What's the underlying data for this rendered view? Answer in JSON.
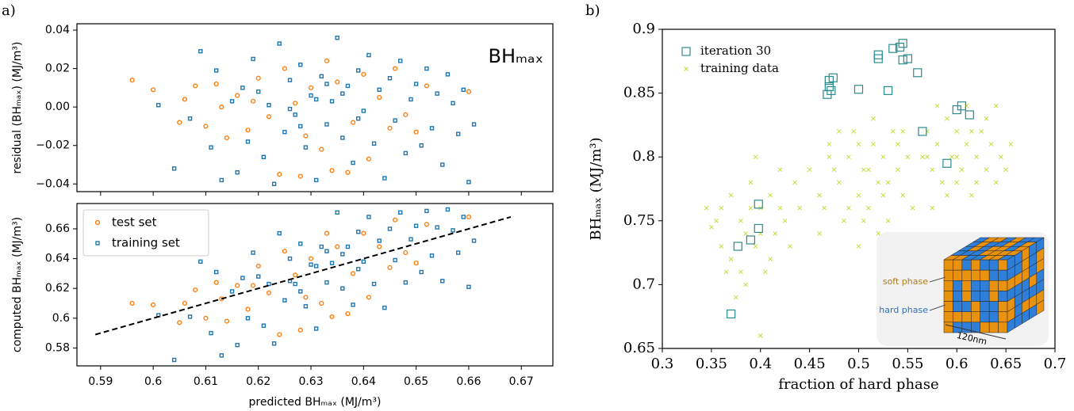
{
  "chart_data": [
    {
      "type": "scatter",
      "panel_label": "a)",
      "ylabel": "residual (BHₘₐₓ) (MJ/m³)",
      "annotation": "BHₘₐₓ",
      "xlim": [
        0.5855,
        0.676
      ],
      "xticks": [
        0.59,
        0.6,
        0.61,
        0.62,
        0.63,
        0.64,
        0.65,
        0.66,
        0.67
      ],
      "ylim": [
        -0.044,
        0.0433
      ],
      "yticks": [
        {
          "value": 0.04,
          "label": "0.04"
        },
        {
          "value": 0.02,
          "label": "0.02"
        },
        {
          "value": 0,
          "label": "0.00"
        },
        {
          "value": -0.02,
          "label": "−0.02"
        },
        {
          "value": -0.04,
          "label": "−0.04"
        }
      ],
      "series": [
        {
          "marker": "circle",
          "color": "#ff7f0e",
          "x": [
            0.596,
            0.6,
            0.605,
            0.606,
            0.608,
            0.61,
            0.612,
            0.614,
            0.616,
            0.618,
            0.62,
            0.622,
            0.624,
            0.625,
            0.627,
            0.628,
            0.63,
            0.632,
            0.634,
            0.635,
            0.637,
            0.638,
            0.64,
            0.641,
            0.643,
            0.645,
            0.646,
            0.648,
            0.65,
            0.652,
            0.66,
            0.619,
            0.629,
            0.633,
            0.613
          ],
          "values": [
            0.014,
            0.009,
            -0.008,
            0.004,
            0.011,
            -0.01,
            0.012,
            -0.016,
            0.006,
            -0.012,
            0.015,
            -0.005,
            -0.035,
            0.02,
            0.002,
            -0.036,
            0.01,
            -0.022,
            -0.033,
            0.013,
            -0.034,
            -0.008,
            0.017,
            -0.027,
            0.005,
            -0.011,
            0.02,
            -0.004,
            -0.013,
            0.011,
            0.008,
            0.003,
            -0.015,
            0.024,
            0.0
          ]
        },
        {
          "marker": "square",
          "color": "#1f77b4",
          "x": [
            0.601,
            0.604,
            0.607,
            0.609,
            0.611,
            0.612,
            0.613,
            0.615,
            0.616,
            0.617,
            0.618,
            0.619,
            0.62,
            0.621,
            0.622,
            0.623,
            0.624,
            0.625,
            0.626,
            0.627,
            0.628,
            0.629,
            0.63,
            0.631,
            0.632,
            0.633,
            0.634,
            0.635,
            0.636,
            0.637,
            0.638,
            0.639,
            0.64,
            0.641,
            0.642,
            0.643,
            0.644,
            0.645,
            0.646,
            0.647,
            0.648,
            0.649,
            0.65,
            0.651,
            0.652,
            0.653,
            0.654,
            0.655,
            0.656,
            0.657,
            0.658,
            0.66,
            0.661,
            0.659,
            0.626,
            0.631,
            0.636,
            0.639,
            0.633,
            0.628
          ],
          "values": [
            0.001,
            -0.032,
            -0.006,
            0.029,
            -0.021,
            0.019,
            -0.038,
            0.003,
            -0.034,
            0.01,
            -0.018,
            0.025,
            0.008,
            -0.026,
            0.001,
            -0.04,
            0.033,
            -0.013,
            0.014,
            -0.004,
            0.022,
            -0.021,
            0.006,
            -0.038,
            0.016,
            -0.009,
            0.003,
            0.036,
            -0.016,
            0.011,
            -0.029,
            0.019,
            -0.002,
            0.027,
            -0.019,
            0.009,
            -0.037,
            0.015,
            -0.007,
            0.024,
            -0.024,
            0.004,
            0.012,
            -0.02,
            0.02,
            -0.011,
            0.007,
            -0.03,
            0.017,
            0.002,
            -0.014,
            -0.039,
            -0.009,
            0.009,
            -0.001,
            0.004,
            0.007,
            -0.006,
            0.012,
            -0.01
          ]
        }
      ]
    },
    {
      "type": "scatter",
      "xlabel": "predicted BHₘₐₓ (MJ/m³)",
      "ylabel": "computed BHₘₐₓ (MJ/m³)",
      "legend": "upper left",
      "xlim": [
        0.5855,
        0.676
      ],
      "xticks": [
        0.59,
        0.6,
        0.61,
        0.62,
        0.63,
        0.64,
        0.65,
        0.66,
        0.67
      ],
      "ylim": [
        0.568,
        0.677
      ],
      "yticks": [
        0.58,
        0.6,
        0.62,
        0.64,
        0.66
      ],
      "series": [
        {
          "name": "test set",
          "marker": "circle",
          "color": "#ff7f0e",
          "x": [
            0.596,
            0.6,
            0.605,
            0.606,
            0.608,
            0.61,
            0.612,
            0.614,
            0.616,
            0.618,
            0.62,
            0.622,
            0.624,
            0.625,
            0.627,
            0.628,
            0.63,
            0.632,
            0.634,
            0.635,
            0.637,
            0.638,
            0.64,
            0.641,
            0.643,
            0.645,
            0.646,
            0.648,
            0.65,
            0.652,
            0.66,
            0.619,
            0.629,
            0.633,
            0.613
          ],
          "values": [
            0.61,
            0.609,
            0.597,
            0.61,
            0.619,
            0.6,
            0.624,
            0.598,
            0.622,
            0.606,
            0.635,
            0.617,
            0.589,
            0.645,
            0.629,
            0.592,
            0.64,
            0.61,
            0.601,
            0.648,
            0.603,
            0.63,
            0.657,
            0.614,
            0.648,
            0.634,
            0.666,
            0.644,
            0.637,
            0.663,
            0.668,
            0.622,
            0.614,
            0.657,
            0.613
          ]
        },
        {
          "name": "training set",
          "marker": "square",
          "color": "#1f77b4",
          "x": [
            0.601,
            0.604,
            0.607,
            0.609,
            0.611,
            0.612,
            0.613,
            0.615,
            0.616,
            0.617,
            0.618,
            0.619,
            0.62,
            0.621,
            0.622,
            0.623,
            0.624,
            0.625,
            0.626,
            0.627,
            0.628,
            0.629,
            0.63,
            0.631,
            0.632,
            0.633,
            0.634,
            0.635,
            0.636,
            0.637,
            0.638,
            0.639,
            0.64,
            0.641,
            0.642,
            0.643,
            0.644,
            0.645,
            0.646,
            0.647,
            0.648,
            0.649,
            0.65,
            0.651,
            0.652,
            0.653,
            0.654,
            0.655,
            0.656,
            0.657,
            0.658,
            0.66,
            0.661,
            0.659,
            0.626,
            0.631,
            0.636,
            0.639,
            0.633,
            0.628
          ],
          "values": [
            0.602,
            0.572,
            0.601,
            0.638,
            0.59,
            0.631,
            0.575,
            0.618,
            0.582,
            0.627,
            0.6,
            0.644,
            0.628,
            0.595,
            0.623,
            0.583,
            0.657,
            0.612,
            0.64,
            0.623,
            0.65,
            0.608,
            0.636,
            0.593,
            0.648,
            0.624,
            0.637,
            0.671,
            0.62,
            0.648,
            0.609,
            0.658,
            0.638,
            0.668,
            0.623,
            0.652,
            0.607,
            0.66,
            0.639,
            0.671,
            0.624,
            0.653,
            0.662,
            0.631,
            0.672,
            0.642,
            0.661,
            0.625,
            0.673,
            0.659,
            0.644,
            0.621,
            0.652,
            0.668,
            0.625,
            0.635,
            0.643,
            0.633,
            0.645,
            0.618
          ]
        },
        {
          "marker": "dashed-line",
          "color": "#000000",
          "x": [
            0.589,
            0.668
          ],
          "values": [
            0.589,
            0.668
          ]
        }
      ]
    },
    {
      "type": "scatter",
      "panel_label": "b)",
      "xlabel": "fraction of hard phase",
      "ylabel": "BHₘₐₓ (MJ/m³)",
      "legend": "upper left",
      "annotations": [
        "soft phase",
        "hard phase",
        "120nm"
      ],
      "xlim": [
        0.3,
        0.7
      ],
      "xticks": [
        0.3,
        0.35,
        0.4,
        0.45,
        0.5,
        0.55,
        0.6,
        0.65,
        0.7
      ],
      "ylim": [
        0.65,
        0.9
      ],
      "yticks": [
        0.65,
        0.7,
        0.75,
        0.8,
        0.85,
        0.9
      ],
      "series": [
        {
          "name": "training data",
          "marker": "x",
          "color": "#c5d92d",
          "x": [
            0.35,
            0.36,
            0.37,
            0.38,
            0.385,
            0.39,
            0.395,
            0.4,
            0.405,
            0.41,
            0.415,
            0.42,
            0.425,
            0.43,
            0.36,
            0.37,
            0.38,
            0.39,
            0.4,
            0.41,
            0.42,
            0.375,
            0.395,
            0.345,
            0.44,
            0.4,
            0.365,
            0.385,
            0.435,
            0.355,
            0.45,
            0.46,
            0.47,
            0.48,
            0.485,
            0.49,
            0.495,
            0.5,
            0.505,
            0.51,
            0.515,
            0.52,
            0.525,
            0.53,
            0.535,
            0.54,
            0.545,
            0.55,
            0.555,
            0.46,
            0.47,
            0.48,
            0.49,
            0.5,
            0.51,
            0.52,
            0.53,
            0.54,
            0.5,
            0.515,
            0.475,
            0.505,
            0.525,
            0.545,
            0.465,
            0.565,
            0.57,
            0.575,
            0.58,
            0.585,
            0.59,
            0.595,
            0.6,
            0.605,
            0.61,
            0.615,
            0.62,
            0.625,
            0.63,
            0.635,
            0.64,
            0.645,
            0.65,
            0.58,
            0.6,
            0.61,
            0.62,
            0.63,
            0.59,
            0.655,
            0.6,
            0.575,
            0.615,
            0.64,
            0.57
          ],
          "values": [
            0.745,
            0.76,
            0.72,
            0.75,
            0.7,
            0.78,
            0.73,
            0.76,
            0.71,
            0.77,
            0.74,
            0.79,
            0.75,
            0.73,
            0.73,
            0.77,
            0.71,
            0.76,
            0.74,
            0.72,
            0.76,
            0.69,
            0.8,
            0.76,
            0.76,
            0.66,
            0.71,
            0.74,
            0.78,
            0.75,
            0.79,
            0.77,
            0.81,
            0.78,
            0.75,
            0.8,
            0.82,
            0.77,
            0.79,
            0.76,
            0.81,
            0.78,
            0.8,
            0.75,
            0.82,
            0.79,
            0.77,
            0.8,
            0.76,
            0.74,
            0.8,
            0.82,
            0.76,
            0.81,
            0.79,
            0.74,
            0.78,
            0.81,
            0.73,
            0.83,
            0.79,
            0.75,
            0.77,
            0.82,
            0.76,
            0.8,
            0.82,
            0.79,
            0.81,
            0.78,
            0.83,
            0.8,
            0.82,
            0.79,
            0.81,
            0.77,
            0.8,
            0.82,
            0.79,
            0.81,
            0.78,
            0.8,
            0.79,
            0.84,
            0.78,
            0.84,
            0.78,
            0.83,
            0.77,
            0.81,
            0.8,
            0.76,
            0.82,
            0.84,
            0.8
          ]
        },
        {
          "name": "iteration 30",
          "marker": "square",
          "color": "#2b8c8c",
          "x": [
            0.37,
            0.377,
            0.39,
            0.398,
            0.398,
            0.468,
            0.47,
            0.47,
            0.472,
            0.474,
            0.5,
            0.52,
            0.52,
            0.53,
            0.535,
            0.542,
            0.545,
            0.545,
            0.55,
            0.56,
            0.565,
            0.59,
            0.6,
            0.605,
            0.613
          ],
          "values": [
            0.677,
            0.73,
            0.735,
            0.744,
            0.763,
            0.849,
            0.855,
            0.86,
            0.852,
            0.862,
            0.853,
            0.877,
            0.88,
            0.852,
            0.885,
            0.886,
            0.889,
            0.876,
            0.877,
            0.866,
            0.82,
            0.795,
            0.837,
            0.84,
            0.833
          ]
        }
      ]
    }
  ]
}
